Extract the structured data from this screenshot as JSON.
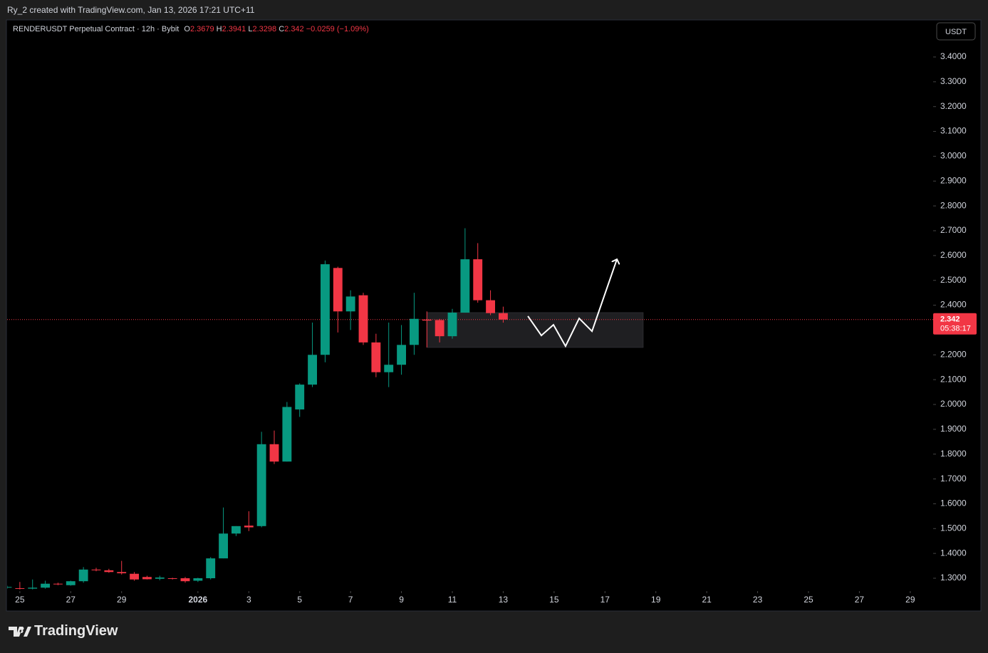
{
  "header": {
    "author_line": "Ry_2 created with TradingView.com, Jan 13, 2026 17:21 UTC+11"
  },
  "chart_data": {
    "type": "candlestick",
    "title": "RENDERUSDT Perpetual Contract · 12h · Bybit",
    "ohlc_labels": [
      "O",
      "H",
      "L",
      "C"
    ],
    "change_label": "−0.0259 (−1.09%)",
    "currency": "USDT",
    "countdown": "05:38:17",
    "up_color": "#089981",
    "down_color": "#f23645",
    "candles": [
      {
        "open": 1.262,
        "high": 1.27,
        "low": 1.258,
        "close": 1.265
      },
      {
        "open": 1.26,
        "high": 1.285,
        "low": 1.255,
        "close": 1.258
      },
      {
        "open": 1.258,
        "high": 1.295,
        "low": 1.255,
        "close": 1.262
      },
      {
        "open": 1.262,
        "high": 1.29,
        "low": 1.258,
        "close": 1.278
      },
      {
        "open": 1.278,
        "high": 1.282,
        "low": 1.272,
        "close": 1.276
      },
      {
        "open": 1.272,
        "high": 1.29,
        "low": 1.27,
        "close": 1.288
      },
      {
        "open": 1.288,
        "high": 1.345,
        "low": 1.282,
        "close": 1.335
      },
      {
        "open": 1.335,
        "high": 1.342,
        "low": 1.328,
        "close": 1.332
      },
      {
        "open": 1.332,
        "high": 1.338,
        "low": 1.322,
        "close": 1.325
      },
      {
        "open": 1.325,
        "high": 1.37,
        "low": 1.315,
        "close": 1.32
      },
      {
        "open": 1.318,
        "high": 1.325,
        "low": 1.29,
        "close": 1.295
      },
      {
        "open": 1.305,
        "high": 1.31,
        "low": 1.295,
        "close": 1.296
      },
      {
        "open": 1.298,
        "high": 1.31,
        "low": 1.292,
        "close": 1.303
      },
      {
        "open": 1.3,
        "high": 1.302,
        "low": 1.295,
        "close": 1.298
      },
      {
        "open": 1.3,
        "high": 1.305,
        "low": 1.282,
        "close": 1.288
      },
      {
        "open": 1.29,
        "high": 1.302,
        "low": 1.285,
        "close": 1.3
      },
      {
        "open": 1.3,
        "high": 1.385,
        "low": 1.295,
        "close": 1.38
      },
      {
        "open": 1.38,
        "high": 1.585,
        "low": 1.38,
        "close": 1.48
      },
      {
        "open": 1.48,
        "high": 1.51,
        "low": 1.47,
        "close": 1.51
      },
      {
        "open": 1.512,
        "high": 1.57,
        "low": 1.49,
        "close": 1.505
      },
      {
        "open": 1.51,
        "high": 1.89,
        "low": 1.505,
        "close": 1.84
      },
      {
        "open": 1.84,
        "high": 1.895,
        "low": 1.76,
        "close": 1.77
      },
      {
        "open": 1.77,
        "high": 2.01,
        "low": 1.77,
        "close": 1.99
      },
      {
        "open": 1.98,
        "high": 2.085,
        "low": 1.95,
        "close": 2.08
      },
      {
        "open": 2.08,
        "high": 2.33,
        "low": 2.07,
        "close": 2.2
      },
      {
        "open": 2.2,
        "high": 2.58,
        "low": 2.17,
        "close": 2.565
      },
      {
        "open": 2.55,
        "high": 2.555,
        "low": 2.29,
        "close": 2.375
      },
      {
        "open": 2.375,
        "high": 2.46,
        "low": 2.3,
        "close": 2.435
      },
      {
        "open": 2.44,
        "high": 2.45,
        "low": 2.24,
        "close": 2.25
      },
      {
        "open": 2.25,
        "high": 2.285,
        "low": 2.11,
        "close": 2.13
      },
      {
        "open": 2.13,
        "high": 2.33,
        "low": 2.07,
        "close": 2.16
      },
      {
        "open": 2.16,
        "high": 2.32,
        "low": 2.12,
        "close": 2.24
      },
      {
        "open": 2.24,
        "high": 2.45,
        "low": 2.2,
        "close": 2.345
      },
      {
        "open": 2.342,
        "high": 2.375,
        "low": 2.23,
        "close": 2.338
      },
      {
        "open": 2.34,
        "high": 2.345,
        "low": 2.25,
        "close": 2.275
      },
      {
        "open": 2.275,
        "high": 2.385,
        "low": 2.265,
        "close": 2.37
      },
      {
        "open": 2.37,
        "high": 2.71,
        "low": 2.37,
        "close": 2.585
      },
      {
        "open": 2.585,
        "high": 2.65,
        "low": 2.41,
        "close": 2.42
      },
      {
        "open": 2.42,
        "high": 2.46,
        "low": 2.36,
        "close": 2.368
      },
      {
        "open": 2.3679,
        "high": 2.3941,
        "low": 2.3298,
        "close": 2.342
      }
    ],
    "xlim": [
      0,
      72.8
    ],
    "xticks": [
      {
        "value": 1,
        "label": "25"
      },
      {
        "value": 5,
        "label": "27"
      },
      {
        "value": 9,
        "label": "29"
      },
      {
        "value": 15,
        "label": "2026"
      },
      {
        "value": 19,
        "label": "3"
      },
      {
        "value": 23,
        "label": "5"
      },
      {
        "value": 27,
        "label": "7"
      },
      {
        "value": 31,
        "label": "9"
      },
      {
        "value": 35,
        "label": "11"
      },
      {
        "value": 39,
        "label": "13"
      },
      {
        "value": 43,
        "label": "15"
      },
      {
        "value": 47,
        "label": "17"
      },
      {
        "value": 51,
        "label": "19"
      },
      {
        "value": 55,
        "label": "21"
      },
      {
        "value": 59,
        "label": "23"
      },
      {
        "value": 63,
        "label": "25"
      },
      {
        "value": 67,
        "label": "27"
      },
      {
        "value": 71,
        "label": "29"
      }
    ],
    "ylim": [
      1.2484,
      3.5434
    ],
    "yticks": [
      {
        "value": 1.3,
        "label": "1.3000"
      },
      {
        "value": 1.4,
        "label": "1.4000"
      },
      {
        "value": 1.5,
        "label": "1.5000"
      },
      {
        "value": 1.6,
        "label": "1.6000"
      },
      {
        "value": 1.7,
        "label": "1.7000"
      },
      {
        "value": 1.8,
        "label": "1.8000"
      },
      {
        "value": 1.9,
        "label": "1.9000"
      },
      {
        "value": 2.0,
        "label": "2.0000"
      },
      {
        "value": 2.1,
        "label": "2.1000"
      },
      {
        "value": 2.2,
        "label": "2.2000"
      },
      {
        "value": 2.3,
        "label": "2.3000"
      },
      {
        "value": 2.4,
        "label": "2.4000"
      },
      {
        "value": 2.5,
        "label": "2.5000"
      },
      {
        "value": 2.6,
        "label": "2.6000"
      },
      {
        "value": 2.7,
        "label": "2.7000"
      },
      {
        "value": 2.8,
        "label": "2.8000"
      },
      {
        "value": 2.9,
        "label": "2.9000"
      },
      {
        "value": 3.0,
        "label": "3.0000"
      },
      {
        "value": 3.1,
        "label": "3.1000"
      },
      {
        "value": 3.2,
        "label": "3.2000"
      },
      {
        "value": 3.3,
        "label": "3.3000"
      },
      {
        "value": 3.4,
        "label": "3.4000"
      }
    ],
    "zone": {
      "x": [
        33,
        50
      ],
      "y": [
        2.23,
        2.37
      ]
    },
    "projection": {
      "x": [
        40.94,
        42.0,
        42.95,
        43.9,
        44.97,
        45.98,
        47.94
      ],
      "y": [
        2.356,
        2.278,
        2.321,
        2.235,
        2.347,
        2.295,
        2.585
      ]
    }
  },
  "footer": {
    "brand": "TradingView"
  }
}
